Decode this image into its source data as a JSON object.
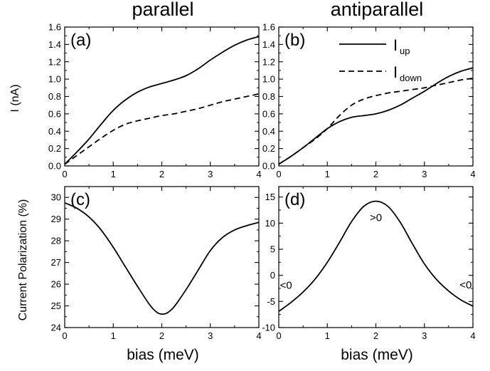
{
  "chart_data": {
    "type": "line",
    "column_titles": [
      "parallel",
      "antiparallel"
    ],
    "ylabel_top": "I (nA)",
    "ylabel_bottom": "Current Polarization (%)",
    "xlabel": "bias (meV)",
    "legend": {
      "placement": "top-right of panel (b)",
      "entries": [
        {
          "main": "I",
          "sub": "up",
          "style": "solid"
        },
        {
          "main": "I",
          "sub": "down",
          "style": "dashed"
        }
      ]
    },
    "panels": [
      {
        "label": "(a)",
        "xlim": [
          0,
          4
        ],
        "ylim": [
          0,
          1.6
        ],
        "xticks": [
          "0",
          "1",
          "2",
          "3",
          "4"
        ],
        "yticks": [
          "0.0",
          "0.2",
          "0.4",
          "0.6",
          "0.8",
          "1.0",
          "1.2",
          "1.4",
          "1.6"
        ],
        "annotations": [],
        "series": [
          {
            "style": "solid",
            "x": [
              0,
              0.25,
              0.5,
              0.75,
              1.0,
              1.25,
              1.5,
              1.75,
              2.0,
              2.25,
              2.5,
              2.75,
              3.0,
              3.25,
              3.5,
              3.75,
              4.0
            ],
            "y": [
              0.02,
              0.16,
              0.31,
              0.48,
              0.64,
              0.76,
              0.85,
              0.91,
              0.95,
              0.99,
              1.04,
              1.12,
              1.22,
              1.31,
              1.39,
              1.45,
              1.49
            ]
          },
          {
            "style": "dashed",
            "x": [
              0,
              0.25,
              0.5,
              0.75,
              1.0,
              1.25,
              1.5,
              1.75,
              2.0,
              2.25,
              2.5,
              2.75,
              3.0,
              3.25,
              3.5,
              3.75,
              4.0
            ],
            "y": [
              0.02,
              0.12,
              0.22,
              0.32,
              0.41,
              0.48,
              0.52,
              0.55,
              0.58,
              0.6,
              0.63,
              0.66,
              0.7,
              0.74,
              0.77,
              0.8,
              0.83
            ]
          }
        ]
      },
      {
        "label": "(b)",
        "xlim": [
          0,
          4
        ],
        "ylim": [
          0,
          1.6
        ],
        "xticks": [
          "0",
          "1",
          "2",
          "3",
          "4"
        ],
        "yticks": [
          "0.0",
          "0.2",
          "0.4",
          "0.6",
          "0.8",
          "1.0",
          "1.2",
          "1.4",
          "1.6"
        ],
        "annotations": [],
        "series": [
          {
            "style": "solid",
            "x": [
              0,
              0.25,
              0.5,
              0.75,
              1.0,
              1.25,
              1.5,
              1.75,
              2.0,
              2.25,
              2.5,
              2.75,
              3.0,
              3.25,
              3.5,
              3.75,
              4.0
            ],
            "y": [
              0.02,
              0.11,
              0.21,
              0.32,
              0.43,
              0.51,
              0.56,
              0.58,
              0.6,
              0.64,
              0.7,
              0.78,
              0.86,
              0.95,
              1.03,
              1.09,
              1.13
            ]
          },
          {
            "style": "dashed",
            "x": [
              0,
              0.25,
              0.5,
              0.75,
              1.0,
              1.25,
              1.5,
              1.75,
              2.0,
              2.25,
              2.5,
              2.75,
              3.0,
              3.25,
              3.5,
              3.75,
              4.0
            ],
            "y": [
              0.02,
              0.11,
              0.21,
              0.31,
              0.43,
              0.58,
              0.7,
              0.77,
              0.81,
              0.84,
              0.86,
              0.88,
              0.9,
              0.93,
              0.96,
              0.99,
              1.01
            ]
          }
        ]
      },
      {
        "label": "(c)",
        "xlim": [
          0,
          4
        ],
        "ylim": [
          24,
          30.5
        ],
        "xticks": [
          "0",
          "1",
          "2",
          "3",
          "4"
        ],
        "yticks": [
          "24",
          "25",
          "26",
          "27",
          "28",
          "29",
          "30"
        ],
        "annotations": [],
        "series": [
          {
            "style": "solid",
            "x": [
              0,
              0.25,
              0.5,
              0.75,
              1.0,
              1.25,
              1.5,
              1.75,
              1.9,
              2.0,
              2.1,
              2.25,
              2.5,
              2.75,
              3.0,
              3.25,
              3.5,
              3.75,
              4.0
            ],
            "y": [
              29.75,
              29.5,
              29.1,
              28.5,
              27.7,
              26.8,
              25.9,
              25.05,
              24.7,
              24.62,
              24.66,
              24.95,
              25.75,
              26.65,
              27.55,
              28.15,
              28.5,
              28.7,
              28.85
            ]
          }
        ]
      },
      {
        "label": "(d)",
        "xlim": [
          0,
          4
        ],
        "ylim": [
          -10,
          17
        ],
        "xticks": [
          "0",
          "1",
          "2",
          "3",
          "4"
        ],
        "yticks": [
          "-10",
          "-5",
          "0",
          "5",
          "10",
          "15"
        ],
        "annotations": [
          {
            "text": "<0",
            "x": 0.15,
            "y": -2.6
          },
          {
            "text": ">0",
            "x": 2.0,
            "y": 10.4
          },
          {
            "text": "<0",
            "x": 3.85,
            "y": -2.5
          }
        ],
        "series": [
          {
            "style": "solid",
            "x": [
              0,
              0.25,
              0.5,
              0.75,
              1.0,
              1.25,
              1.5,
              1.75,
              2.0,
              2.25,
              2.5,
              2.75,
              3.0,
              3.25,
              3.5,
              3.75,
              4.0
            ],
            "y": [
              -6.9,
              -5.2,
              -3.2,
              -0.7,
              2.5,
              6.3,
              10.3,
              13.2,
              14.2,
              13.2,
              10.2,
              6.1,
              2.2,
              -0.8,
              -3.0,
              -4.7,
              -5.9
            ]
          }
        ]
      }
    ]
  }
}
